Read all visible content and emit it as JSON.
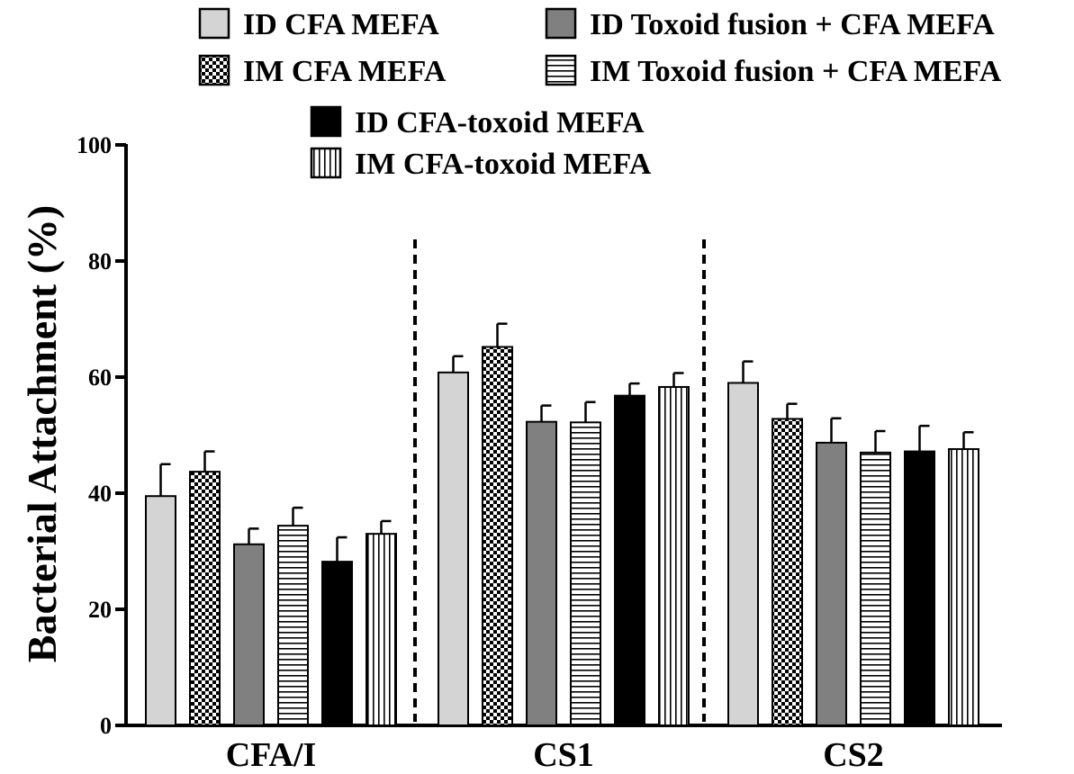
{
  "chart_data": {
    "type": "bar",
    "categories": [
      "CFA/I",
      "CS1",
      "CS2"
    ],
    "ylabel": "Bacterial Attachment (%)",
    "xlabel": "",
    "ylim": [
      0,
      100
    ],
    "yticks": [
      0,
      20,
      40,
      60,
      80,
      100
    ],
    "grid": false,
    "legend_position": "top",
    "group_separators": "dashed",
    "series": [
      {
        "name": "ID CFA MEFA",
        "pattern": "light-gray",
        "values": [
          39.5,
          60.8,
          59.0
        ],
        "errors": [
          5.5,
          2.8,
          3.7
        ]
      },
      {
        "name": "IM CFA MEFA",
        "pattern": "checker",
        "values": [
          43.7,
          65.2,
          52.8
        ],
        "errors": [
          3.5,
          4.0,
          2.6
        ]
      },
      {
        "name": "ID Toxoid fusion + CFA MEFA",
        "pattern": "dark-gray",
        "values": [
          31.2,
          52.3,
          48.7
        ],
        "errors": [
          2.7,
          2.8,
          4.2
        ]
      },
      {
        "name": "IM Toxoid fusion + CFA MEFA",
        "pattern": "horizontal-lines",
        "values": [
          34.4,
          52.2,
          47.0
        ],
        "errors": [
          3.1,
          3.5,
          3.7
        ]
      },
      {
        "name": "ID CFA-toxoid MEFA",
        "pattern": "black",
        "values": [
          28.2,
          56.8,
          47.2
        ],
        "errors": [
          4.2,
          2.1,
          4.4
        ]
      },
      {
        "name": "IM CFA-toxoid MEFA",
        "pattern": "vertical-lines",
        "values": [
          33.0,
          58.3,
          47.6
        ],
        "errors": [
          2.2,
          2.4,
          2.9
        ]
      }
    ]
  }
}
